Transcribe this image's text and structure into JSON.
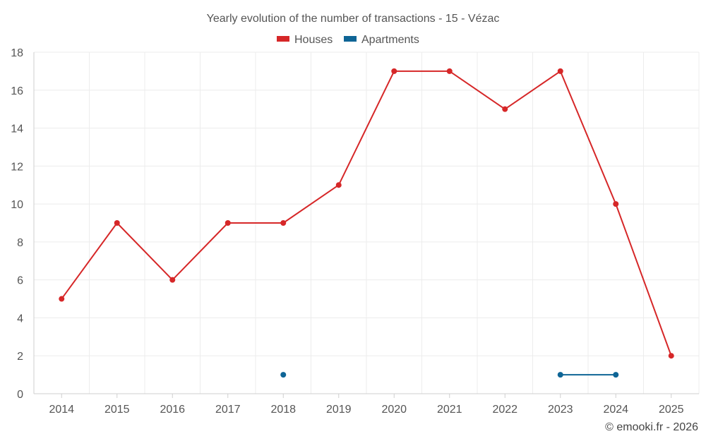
{
  "chart_data": {
    "type": "line",
    "title": "Yearly evolution of the number of transactions - 15 - Vézac",
    "categories": [
      "2014",
      "2015",
      "2016",
      "2017",
      "2018",
      "2019",
      "2020",
      "2021",
      "2022",
      "2023",
      "2024",
      "2025"
    ],
    "ylim": [
      0,
      18
    ],
    "yticks": [
      "0",
      "2",
      "4",
      "6",
      "8",
      "10",
      "12",
      "14",
      "16",
      "18"
    ],
    "grid": true,
    "legend_position": "top-center",
    "series": [
      {
        "name": "Houses",
        "color": "#d62728",
        "values": [
          5,
          9,
          6,
          9,
          9,
          11,
          17,
          17,
          15,
          17,
          10,
          2
        ]
      },
      {
        "name": "Apartments",
        "color": "#0e6596",
        "values": [
          null,
          null,
          null,
          null,
          1,
          null,
          null,
          null,
          null,
          1,
          1,
          null
        ]
      }
    ]
  },
  "credit": "© emooki.fr - 2026"
}
